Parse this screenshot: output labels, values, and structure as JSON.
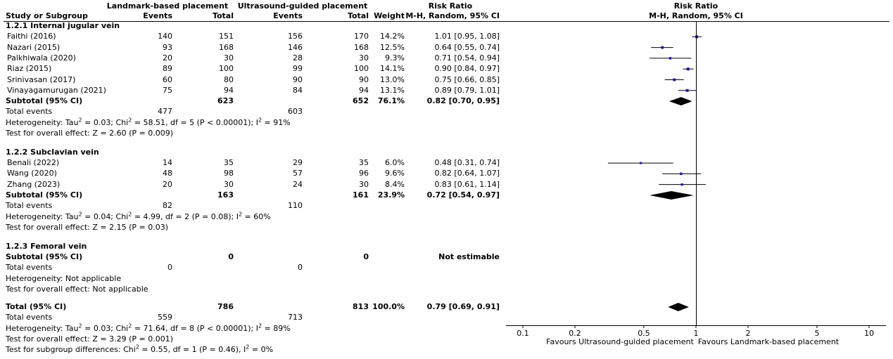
{
  "chart_data": {
    "type": "forest",
    "header": {
      "group1": "Landmark-based placement",
      "group2": "Ultrasound-guided placement",
      "risk_ratio": "Risk Ratio",
      "col_study": "Study or Subgroup",
      "col_events1": "Events",
      "col_total1": "Total",
      "col_events2": "Events",
      "col_total2": "Total",
      "col_weight": "Weight",
      "col_method": "M-H, Random, 95% CI",
      "plot_title": "Risk Ratio",
      "plot_method": "M-H, Random, 95% CI"
    },
    "subgroups": [
      {
        "title": "1.2.1 Internal jugular vein",
        "studies": [
          {
            "name": "Faithi (2016)",
            "e1": "140",
            "t1": "151",
            "e2": "156",
            "t2": "170",
            "weight": "14.2%",
            "ci_text": "1.01 [0.95, 1.08]",
            "rr": 1.01,
            "lo": 0.95,
            "hi": 1.08,
            "w": 14.2
          },
          {
            "name": "Nazari (2015)",
            "e1": "93",
            "t1": "168",
            "e2": "146",
            "t2": "168",
            "weight": "12.5%",
            "ci_text": "0.64 [0.55, 0.74]",
            "rr": 0.64,
            "lo": 0.55,
            "hi": 0.74,
            "w": 12.5
          },
          {
            "name": "Palkhiwala (2020)",
            "e1": "20",
            "t1": "30",
            "e2": "28",
            "t2": "30",
            "weight": "9.3%",
            "ci_text": "0.71 [0.54, 0.94]",
            "rr": 0.71,
            "lo": 0.54,
            "hi": 0.94,
            "w": 9.3
          },
          {
            "name": "Riaz (2015)",
            "e1": "89",
            "t1": "100",
            "e2": "99",
            "t2": "100",
            "weight": "14.1%",
            "ci_text": "0.90 [0.84, 0.97]",
            "rr": 0.9,
            "lo": 0.84,
            "hi": 0.97,
            "w": 14.1
          },
          {
            "name": "Srinivasan (2017)",
            "e1": "60",
            "t1": "80",
            "e2": "90",
            "t2": "90",
            "weight": "13.0%",
            "ci_text": "0.75 [0.66, 0.85]",
            "rr": 0.75,
            "lo": 0.66,
            "hi": 0.85,
            "w": 13.0
          },
          {
            "name": "Vinayagamurugan (2021)",
            "e1": "75",
            "t1": "94",
            "e2": "84",
            "t2": "94",
            "weight": "13.1%",
            "ci_text": "0.89 [0.79, 1.01]",
            "rr": 0.89,
            "lo": 0.79,
            "hi": 1.01,
            "w": 13.1
          }
        ],
        "subtotal": {
          "label": "Subtotal (95% CI)",
          "t1": "623",
          "t2": "652",
          "weight": "76.1%",
          "ci_text": "0.82 [0.70, 0.95]",
          "rr": 0.82,
          "lo": 0.7,
          "hi": 0.95
        },
        "total_events": {
          "label": "Total events",
          "e1": "477",
          "e2": "603"
        },
        "heterogeneity": {
          "prefix": "Heterogeneity: Tau",
          "tau_val": " = 0.03; Chi",
          "chi_val": " = 58.51, df = 5 (P < 0.00001); I",
          "i_val": " = 91%"
        },
        "overall": "Test for overall effect: Z = 2.60 (P = 0.009)"
      },
      {
        "title": "1.2.2 Subclavian vein",
        "studies": [
          {
            "name": "Benali (2022)",
            "e1": "14",
            "t1": "35",
            "e2": "29",
            "t2": "35",
            "weight": "6.0%",
            "ci_text": "0.48 [0.31, 0.74]",
            "rr": 0.48,
            "lo": 0.31,
            "hi": 0.74,
            "w": 6.0
          },
          {
            "name": "Wang (2020)",
            "e1": "48",
            "t1": "98",
            "e2": "57",
            "t2": "96",
            "weight": "9.6%",
            "ci_text": "0.82 [0.64, 1.07]",
            "rr": 0.82,
            "lo": 0.64,
            "hi": 1.07,
            "w": 9.6
          },
          {
            "name": "Zhang (2023)",
            "e1": "20",
            "t1": "30",
            "e2": "24",
            "t2": "30",
            "weight": "8.4%",
            "ci_text": "0.83 [0.61, 1.14]",
            "rr": 0.83,
            "lo": 0.61,
            "hi": 1.14,
            "w": 8.4
          }
        ],
        "subtotal": {
          "label": "Subtotal (95% CI)",
          "t1": "163",
          "t2": "161",
          "weight": "23.9%",
          "ci_text": "0.72 [0.54, 0.97]",
          "rr": 0.72,
          "lo": 0.54,
          "hi": 0.97
        },
        "total_events": {
          "label": "Total events",
          "e1": "82",
          "e2": "110"
        },
        "heterogeneity": {
          "prefix": "Heterogeneity: Tau",
          "tau_val": " = 0.04; Chi",
          "chi_val": " = 4.99, df = 2 (P = 0.08); I",
          "i_val": " = 60%"
        },
        "overall": "Test for overall effect: Z = 2.15 (P = 0.03)"
      },
      {
        "title": "1.2.3 Femoral vein",
        "subtotal": {
          "label": "Subtotal (95% CI)",
          "t1": "0",
          "t2": "0",
          "ci_text": "Not estimable"
        },
        "total_events": {
          "label": "Total events",
          "e1": "0",
          "e2": "0"
        },
        "heterogeneity_text": "Heterogeneity: Not applicable",
        "overall": "Test for overall effect: Not applicable"
      }
    ],
    "total": {
      "label": "Total (95% CI)",
      "t1": "786",
      "t2": "813",
      "weight": "100.0%",
      "ci_text": "0.79 [0.69, 0.91]",
      "rr": 0.79,
      "lo": 0.69,
      "hi": 0.91
    },
    "total_events": {
      "label": "Total events",
      "e1": "559",
      "e2": "713"
    },
    "total_heterogeneity": {
      "prefix": "Heterogeneity: Tau",
      "tau_val": " = 0.03; Chi",
      "chi_val": " = 71.64, df = 8 (P < 0.00001); I",
      "i_val": " = 89%"
    },
    "total_overall": "Test for overall effect: Z = 3.29 (P = 0.001)",
    "subgroup_diff": {
      "prefix": "Test for subgroup differences: Chi",
      "chi_val": " = 0.55, df = 1 (P = 0.46), I",
      "i_val": " = 0%"
    },
    "axis": {
      "scale": "log",
      "range": [
        0.1,
        10
      ],
      "ticks": [
        {
          "value": 0.1,
          "label": "0.1"
        },
        {
          "value": 0.2,
          "label": "0.2"
        },
        {
          "value": 0.5,
          "label": "0.5"
        },
        {
          "value": 1,
          "label": "1"
        },
        {
          "value": 2,
          "label": "2"
        },
        {
          "value": 5,
          "label": "5"
        },
        {
          "value": 10,
          "label": "10"
        }
      ],
      "favours_left": "Favours Ultrasound-guided placement",
      "favours_right": "Favours Landmark-based placement"
    },
    "colors": {
      "marker": "#1a1aa6",
      "text": "#000000"
    }
  }
}
